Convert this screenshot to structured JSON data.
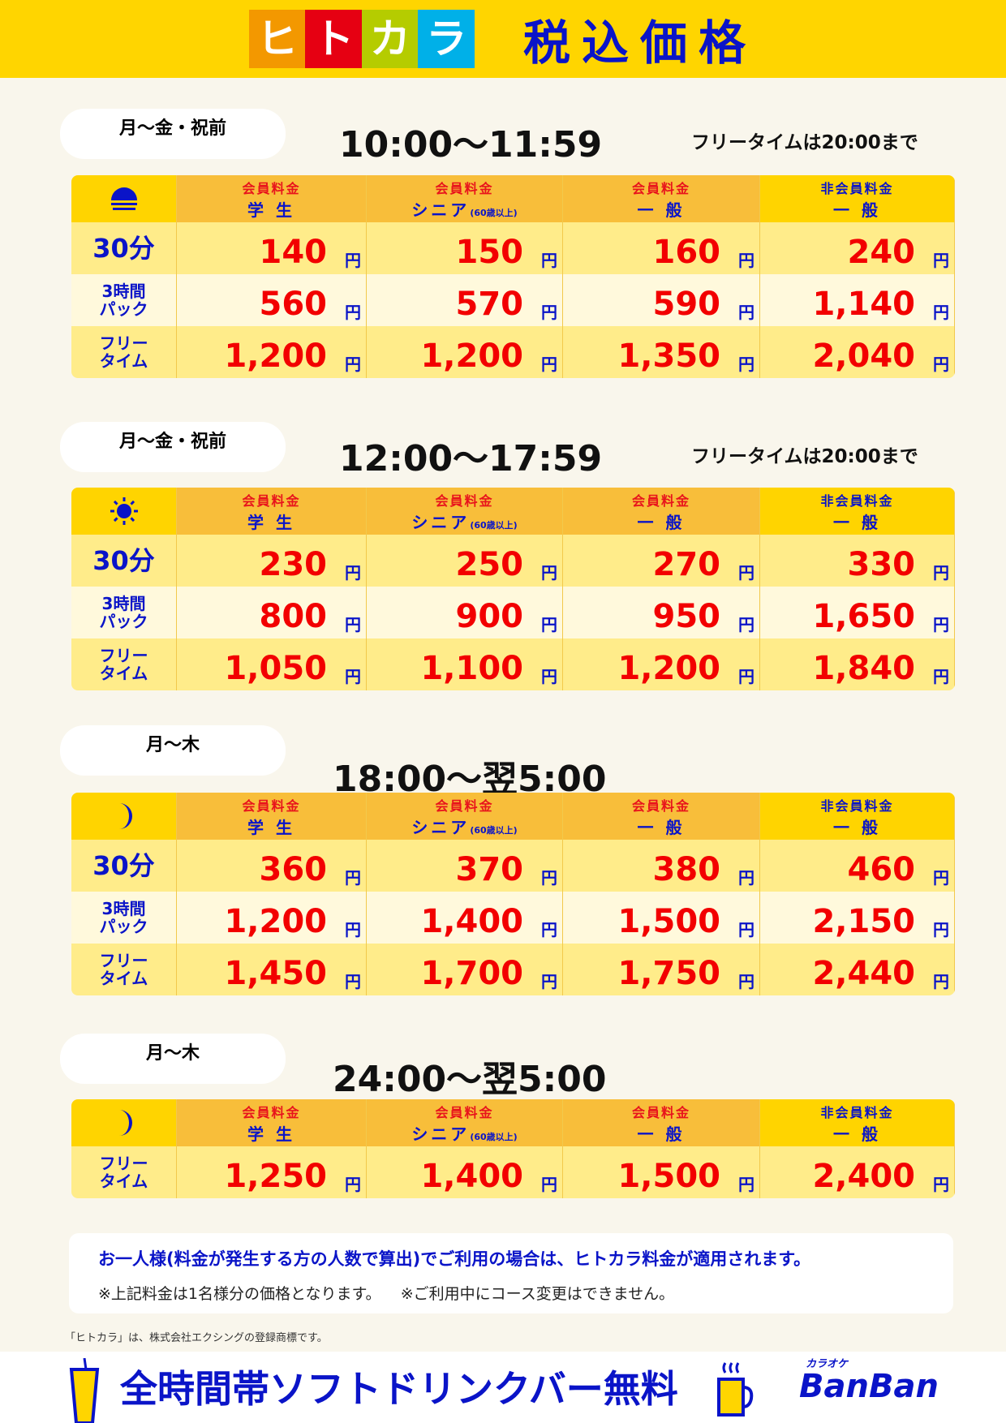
{
  "header": {
    "logo_chars": [
      "ヒ",
      "ト",
      "カ",
      "ラ"
    ],
    "logo_colors": [
      "#F39800",
      "#E60012",
      "#B5CC00",
      "#00B0E8"
    ],
    "title": "税込価格"
  },
  "column_headers": [
    {
      "top": "会員料金",
      "bottom": "学 生",
      "note": ""
    },
    {
      "top": "会員料金",
      "bottom": "シニア",
      "note": "(60歳以上)"
    },
    {
      "top": "会員料金",
      "bottom": "一 般",
      "note": ""
    },
    {
      "top": "非会員料金",
      "bottom": "一 般",
      "note": ""
    }
  ],
  "row_labels": {
    "min30": "30分",
    "pack3": [
      "3時間",
      "パック"
    ],
    "free": [
      "フリー",
      "タイム"
    ]
  },
  "yen": "円",
  "sections": [
    {
      "days": "月〜金・祝前",
      "time": "10:00〜11:59",
      "note": "フリータイムは20:00まで",
      "icon": "sunset-icon",
      "rows": [
        [
          "140",
          "150",
          "160",
          "240"
        ],
        [
          "560",
          "570",
          "590",
          "1,140"
        ],
        [
          "1,200",
          "1,200",
          "1,350",
          "2,040"
        ]
      ]
    },
    {
      "days": "月〜金・祝前",
      "time": "12:00〜17:59",
      "note": "フリータイムは20:00まで",
      "icon": "sun-icon",
      "rows": [
        [
          "230",
          "250",
          "270",
          "330"
        ],
        [
          "800",
          "900",
          "950",
          "1,650"
        ],
        [
          "1,050",
          "1,100",
          "1,200",
          "1,840"
        ]
      ]
    },
    {
      "days": "月〜木",
      "time": "18:00〜翌5:00",
      "note": "",
      "icon": "moon-icon",
      "rows": [
        [
          "360",
          "370",
          "380",
          "460"
        ],
        [
          "1,200",
          "1,400",
          "1,500",
          "2,150"
        ],
        [
          "1,450",
          "1,700",
          "1,750",
          "2,440"
        ]
      ]
    },
    {
      "days": "月〜木",
      "time": "24:00〜翌5:00",
      "note": "",
      "icon": "moon-icon",
      "rows": [
        [
          "1,250",
          "1,400",
          "1,500",
          "2,400"
        ]
      ],
      "free_only": true
    }
  ],
  "notes": {
    "line1": "お一人様(料金が発生する方の人数で算出)でご利用の場合は、ヒトカラ料金が適用されます。",
    "line2a": "※上記料金は1名様分の価格となります。",
    "line2b": "※ご利用中にコース変更はできません。"
  },
  "trademark": "「ヒトカラ」は、株式会社エクシングの登録商標です。",
  "footer": {
    "drink_bar": "全時間帯ソフトドリンクバー無料",
    "brand": "BanBan",
    "brand_sub": "カラオケ"
  }
}
